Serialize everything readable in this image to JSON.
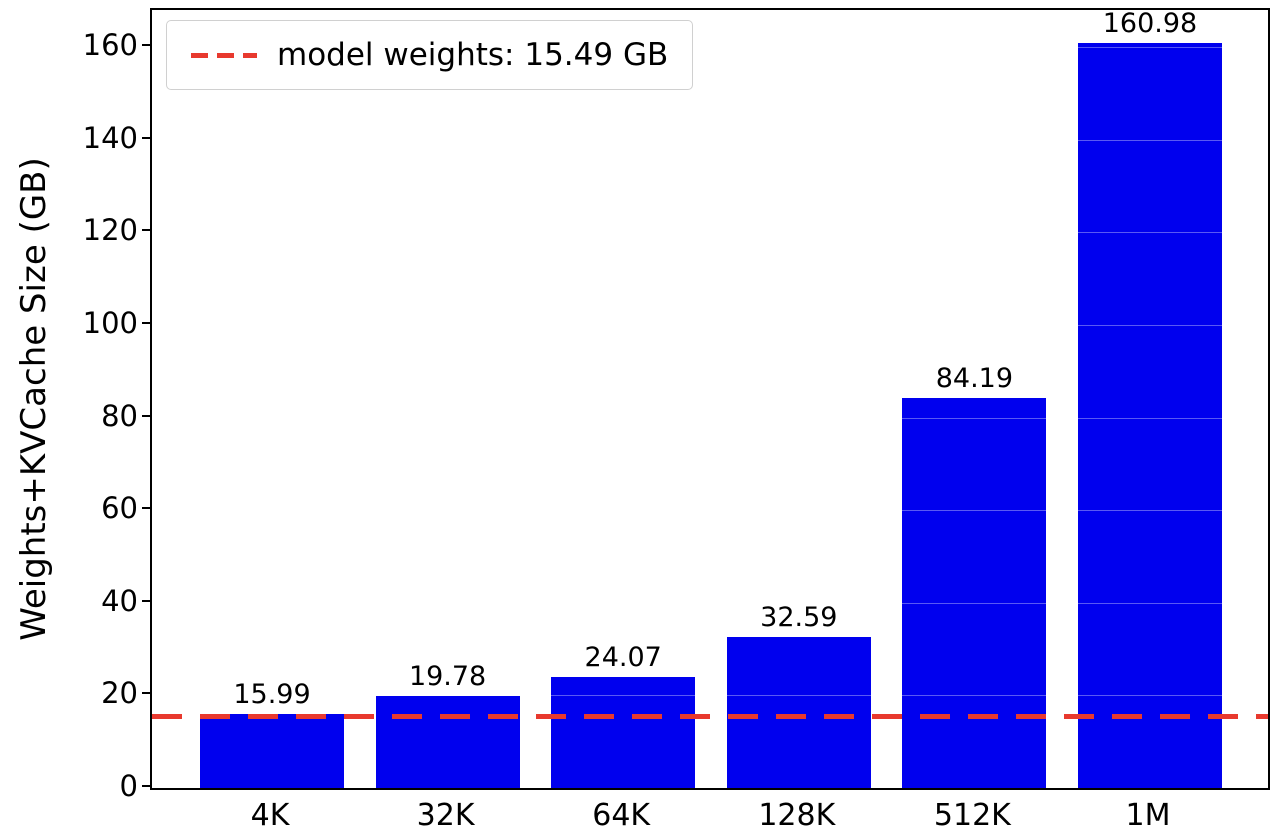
{
  "chart_data": {
    "type": "bar",
    "title": "",
    "xlabel": "",
    "ylabel": "Weights+KVCache Size (GB)",
    "categories": [
      "4K",
      "32K",
      "64K",
      "128K",
      "512K",
      "1M"
    ],
    "values": [
      15.99,
      19.78,
      24.07,
      32.59,
      84.19,
      160.98
    ],
    "bar_labels": [
      "15.99",
      "19.78",
      "24.07",
      "32.59",
      "84.19",
      "160.98"
    ],
    "yticks": [
      0,
      20,
      40,
      60,
      80,
      100,
      120,
      140,
      160
    ],
    "ylim": [
      0,
      168
    ],
    "grid": false,
    "legend_position": "upper left",
    "bar_color": "#0000ee",
    "reference_line": {
      "value": 15.49,
      "label": "model weights: 15.49 GB",
      "color": "#e8392e",
      "style": "dashed"
    }
  }
}
